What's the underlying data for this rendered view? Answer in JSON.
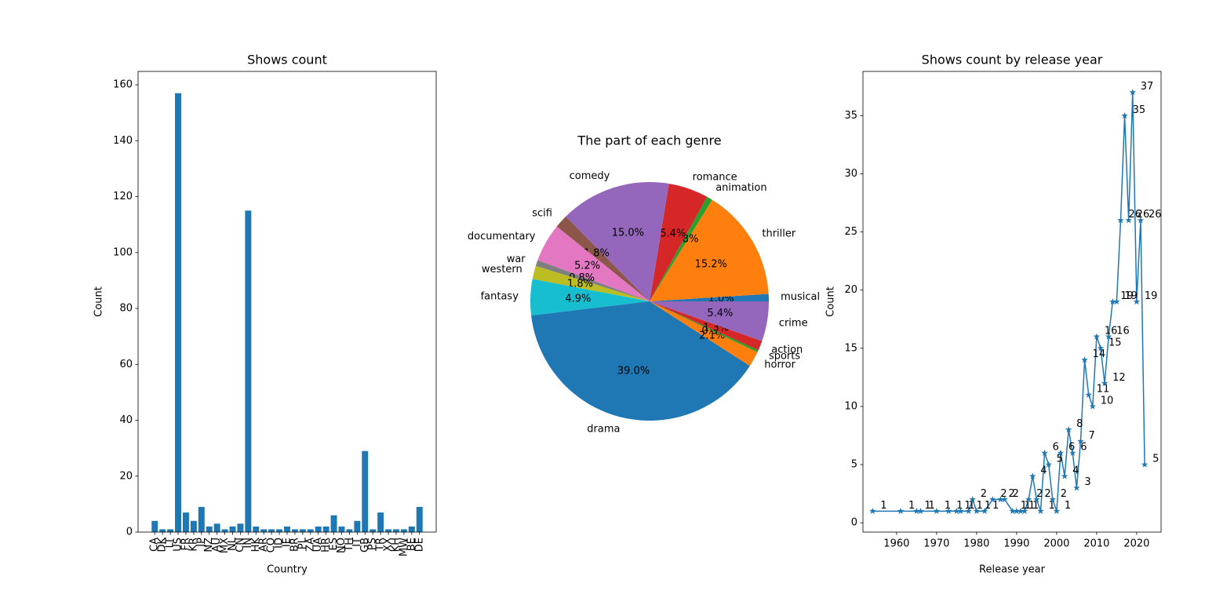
{
  "chart_data": [
    {
      "type": "bar",
      "title": "Shows count",
      "x_label": "Country",
      "y_label": "Count",
      "color": "#1f77b4",
      "categories": [
        "CA",
        "DK",
        "LT",
        "US",
        "FR",
        "KR",
        "JP",
        "NZ",
        "AU",
        "MX",
        "NL",
        "CN",
        "IN",
        "HK",
        "AR",
        "CO",
        "ID",
        "IE",
        "BR",
        "PL",
        "ZA",
        "UA",
        "HR",
        "ES",
        "NO",
        "TH",
        "IT",
        "GB",
        "PS",
        "TR",
        "XX",
        "KH",
        "MW",
        "BE",
        "DE"
      ],
      "values": [
        4,
        1,
        1,
        157,
        7,
        4,
        9,
        2,
        3,
        1,
        2,
        3,
        115,
        2,
        1,
        1,
        1,
        2,
        1,
        1,
        1,
        2,
        2,
        6,
        2,
        1,
        4,
        29,
        1,
        7,
        1,
        1,
        1,
        2,
        9
      ],
      "ylim": [
        0,
        164.8
      ],
      "yticks": [
        0,
        20,
        40,
        60,
        80,
        100,
        120,
        140,
        160
      ],
      "grid": false
    },
    {
      "type": "pie",
      "title": "The part of each genre",
      "categories": [
        "musical",
        "thriller",
        "animation",
        "romance",
        "comedy",
        "scifi",
        "documentary",
        "war",
        "western",
        "fantasy",
        "drama",
        "horror",
        "sports",
        "action",
        "crime"
      ],
      "values": [
        1.0,
        15.2,
        0.8,
        5.4,
        15.0,
        1.8,
        5.2,
        0.8,
        1.8,
        4.9,
        39.0,
        2.1,
        0.3,
        1.3,
        5.4
      ],
      "value_labels": [
        "1.0%",
        "15.2%",
        "0.8%",
        "5.4%",
        "15.0%",
        "1.8%",
        "5.2%",
        "0.8%",
        "1.8%",
        "4.9%",
        "39.0%",
        "2.1%",
        "0.3%",
        "1.3%",
        "5.4%"
      ],
      "colors": [
        "#1f77b4",
        "#ff7f0e",
        "#2ca02c",
        "#d62728",
        "#9467bd",
        "#8c564b",
        "#e377c2",
        "#7f7f7f",
        "#bcbd22",
        "#17becf",
        "#1f77b4",
        "#ff7f0e",
        "#2ca02c",
        "#d62728",
        "#9467bd"
      ]
    },
    {
      "type": "line",
      "title": "Shows count by release year",
      "x_label": "Release year",
      "y_label": "Count",
      "color": "#1f77b4",
      "marker": "star",
      "x": [
        1954,
        1961,
        1965,
        1966,
        1970,
        1973,
        1975,
        1976,
        1978,
        1979,
        1980,
        1982,
        1984,
        1986,
        1987,
        1989,
        1990,
        1991,
        1992,
        1993,
        1994,
        1995,
        1996,
        1997,
        1998,
        1999,
        2000,
        2001,
        2002,
        2003,
        2004,
        2005,
        2006,
        2007,
        2008,
        2009,
        2010,
        2011,
        2012,
        2013,
        2014,
        2015,
        2016,
        2017,
        2018,
        2019,
        2020,
        2021,
        2022
      ],
      "values": [
        1,
        1,
        1,
        1,
        1,
        1,
        1,
        1,
        1,
        2,
        1,
        1,
        2,
        2,
        2,
        1,
        1,
        1,
        1,
        2,
        4,
        2,
        1,
        6,
        5,
        2,
        1,
        6,
        4,
        8,
        6,
        3,
        7,
        14,
        11,
        10,
        16,
        15,
        12,
        16,
        19,
        19,
        26,
        35,
        26,
        37,
        19,
        26,
        5
      ],
      "xlim": [
        1951.6,
        2026.1
      ],
      "xticks": [
        1960,
        1970,
        1980,
        1990,
        2000,
        2010,
        2020
      ],
      "ylim": [
        -0.8,
        38.8
      ],
      "yticks": [
        0,
        5,
        10,
        15,
        20,
        25,
        30,
        35
      ],
      "grid": false
    }
  ]
}
